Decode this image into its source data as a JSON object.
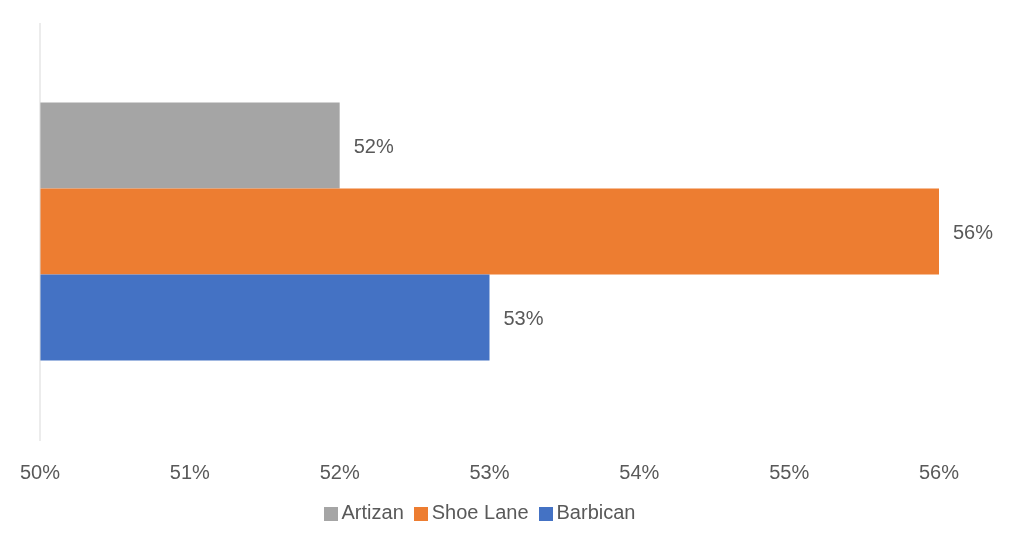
{
  "chart_data": {
    "type": "bar",
    "orientation": "horizontal",
    "categories": [
      null
    ],
    "series": [
      {
        "name": "Artizan",
        "color": "#a5a5a5",
        "values": [
          52
        ],
        "value_labels": [
          "52%"
        ]
      },
      {
        "name": "Shoe Lane",
        "color": "#ed7d31",
        "values": [
          56
        ],
        "value_labels": [
          "56%"
        ]
      },
      {
        "name": "Barbican",
        "color": "#4472c4",
        "values": [
          53
        ],
        "value_labels": [
          "53%"
        ]
      }
    ],
    "xlim": [
      50,
      56
    ],
    "xticks": [
      {
        "value": 50,
        "label": "50%"
      },
      {
        "value": 51,
        "label": "51%"
      },
      {
        "value": 52,
        "label": "52%"
      },
      {
        "value": 53,
        "label": "53%"
      },
      {
        "value": 54,
        "label": "54%"
      },
      {
        "value": 55,
        "label": "55%"
      },
      {
        "value": 56,
        "label": "56%"
      }
    ],
    "legend": "bottom"
  }
}
